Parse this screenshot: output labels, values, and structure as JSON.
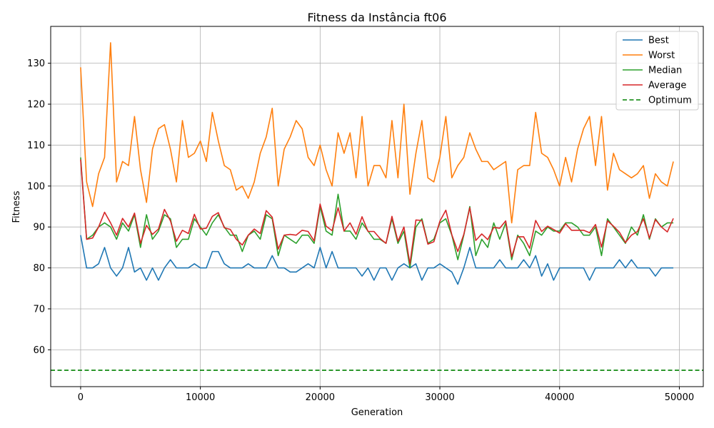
{
  "chart_data": {
    "type": "line",
    "title": "Fitness da Instância ft06",
    "xlabel": "Generation",
    "ylabel": "Fitness",
    "xlim": [
      -2500,
      52000
    ],
    "ylim": [
      51,
      139
    ],
    "xticks": [
      0,
      10000,
      20000,
      30000,
      40000,
      50000
    ],
    "yticks": [
      60,
      70,
      80,
      90,
      100,
      110,
      120,
      130
    ],
    "grid": true,
    "legend_position": "top-right",
    "x": [
      0,
      500,
      1000,
      1500,
      2000,
      2500,
      3000,
      3500,
      4000,
      4500,
      5000,
      5500,
      6000,
      6500,
      7000,
      7500,
      8000,
      8500,
      9000,
      9500,
      10000,
      10500,
      11000,
      11500,
      12000,
      12500,
      13000,
      13500,
      14000,
      14500,
      15000,
      15500,
      16000,
      16500,
      17000,
      17500,
      18000,
      18500,
      19000,
      19500,
      20000,
      20500,
      21000,
      21500,
      22000,
      22500,
      23000,
      23500,
      24000,
      24500,
      25000,
      25500,
      26000,
      26500,
      27000,
      27500,
      28000,
      28500,
      29000,
      29500,
      30000,
      30500,
      31000,
      31500,
      32000,
      32500,
      33000,
      33500,
      34000,
      34500,
      35000,
      35500,
      36000,
      36500,
      37000,
      37500,
      38000,
      38500,
      39000,
      39500,
      40000,
      40500,
      41000,
      41500,
      42000,
      42500,
      43000,
      43500,
      44000,
      44500,
      45000,
      45500,
      46000,
      46500,
      47000,
      47500,
      48000,
      48500,
      49000,
      49500
    ],
    "series": [
      {
        "name": "Best",
        "color": "#1f77b4",
        "dashed": false,
        "values": [
          88,
          80,
          80,
          81,
          85,
          80,
          78,
          80,
          85,
          79,
          80,
          77,
          80,
          77,
          80,
          82,
          80,
          80,
          80,
          81,
          80,
          80,
          84,
          84,
          81,
          80,
          80,
          80,
          81,
          80,
          80,
          80,
          83,
          80,
          80,
          79,
          79,
          80,
          81,
          80,
          85,
          80,
          84,
          80,
          80,
          80,
          80,
          78,
          80,
          77,
          80,
          80,
          77,
          80,
          81,
          80,
          81,
          77,
          80,
          80,
          81,
          80,
          79,
          76,
          80,
          85,
          80,
          80,
          80,
          80,
          82,
          80,
          80,
          80,
          82,
          80,
          83,
          78,
          81,
          77,
          80,
          80,
          80,
          80,
          80,
          77,
          80,
          80,
          80,
          80,
          82,
          80,
          82,
          80,
          80,
          80,
          78,
          80,
          80,
          80
        ]
      },
      {
        "name": "Worst",
        "color": "#ff7f0e",
        "dashed": false,
        "values": [
          129,
          101,
          95,
          103,
          107,
          135,
          101,
          106,
          105,
          117,
          104,
          96,
          109,
          114,
          115,
          109,
          101,
          116,
          107,
          108,
          111,
          106,
          118,
          111,
          105,
          104,
          99,
          100,
          97,
          101,
          108,
          112,
          119,
          100,
          109,
          112,
          116,
          114,
          107,
          105,
          110,
          104,
          100,
          113,
          108,
          113,
          102,
          117,
          100,
          105,
          105,
          102,
          116,
          102,
          120,
          98,
          108,
          116,
          102,
          101,
          107,
          117,
          102,
          105,
          107,
          113,
          109,
          106,
          106,
          104,
          105,
          106,
          91,
          104,
          105,
          105,
          118,
          108,
          107,
          104,
          100,
          107,
          101,
          109,
          114,
          117,
          105,
          117,
          99,
          108,
          104,
          103,
          102,
          103,
          105,
          97,
          103,
          101,
          100,
          106
        ]
      },
      {
        "name": "Median",
        "color": "#2ca02c",
        "dashed": false,
        "values": [
          107,
          87,
          88,
          90,
          91,
          90,
          87,
          91,
          89,
          93,
          85,
          93,
          87,
          89,
          93,
          92,
          85,
          87,
          87,
          92,
          90,
          88,
          91,
          93,
          90,
          88,
          88,
          84,
          88,
          89,
          87,
          93,
          92,
          83,
          88,
          87,
          86,
          88,
          88,
          86,
          95,
          89,
          88,
          98,
          89,
          89,
          87,
          91,
          89,
          87,
          87,
          86,
          92,
          86,
          89,
          80,
          90,
          92,
          86,
          87,
          91,
          92,
          88,
          82,
          88,
          95,
          83,
          87,
          85,
          91,
          87,
          91,
          82,
          88,
          86,
          83,
          89,
          88,
          90,
          89,
          89,
          91,
          91,
          90,
          88,
          88,
          90,
          83,
          92,
          90,
          88,
          86,
          90,
          88,
          93,
          87,
          92,
          90,
          91,
          91
        ]
      },
      {
        "name": "Average",
        "color": "#d62728",
        "dashed": false,
        "values": [
          106.5,
          87,
          87.3,
          90,
          93.6,
          91,
          88,
          92.1,
          90,
          93.4,
          86,
          90.4,
          88.2,
          89.5,
          94.3,
          91.5,
          86.5,
          89.2,
          88.4,
          93.1,
          89.5,
          89.7,
          92.6,
          93.5,
          89.8,
          89.4,
          87,
          85.6,
          88,
          89.5,
          88.4,
          94,
          92.4,
          84.6,
          88,
          88.2,
          88,
          89.2,
          88.9,
          86.6,
          95.6,
          90.2,
          89.1,
          94.7,
          89,
          91,
          88.2,
          92.5,
          88.9,
          88.9,
          87.2,
          86,
          92.6,
          86.5,
          90,
          81,
          91.7,
          91.6,
          85.8,
          86.4,
          91.4,
          94.1,
          88.1,
          84,
          88.2,
          94.7,
          86.7,
          88.3,
          86.9,
          89.9,
          89.7,
          91.5,
          82.7,
          87.6,
          87.6,
          84.8,
          91.6,
          88.9,
          90.2,
          89.4,
          88.5,
          90.8,
          89.2,
          89.2,
          89.2,
          88.6,
          90.6,
          85.1,
          91.5,
          90.2,
          88.7,
          86.2,
          88,
          88.9,
          92,
          87.3,
          91.8,
          90,
          88.8,
          92.1
        ]
      },
      {
        "name": "Optimum",
        "color": "#008000",
        "dashed": true,
        "constant": 55
      }
    ]
  }
}
